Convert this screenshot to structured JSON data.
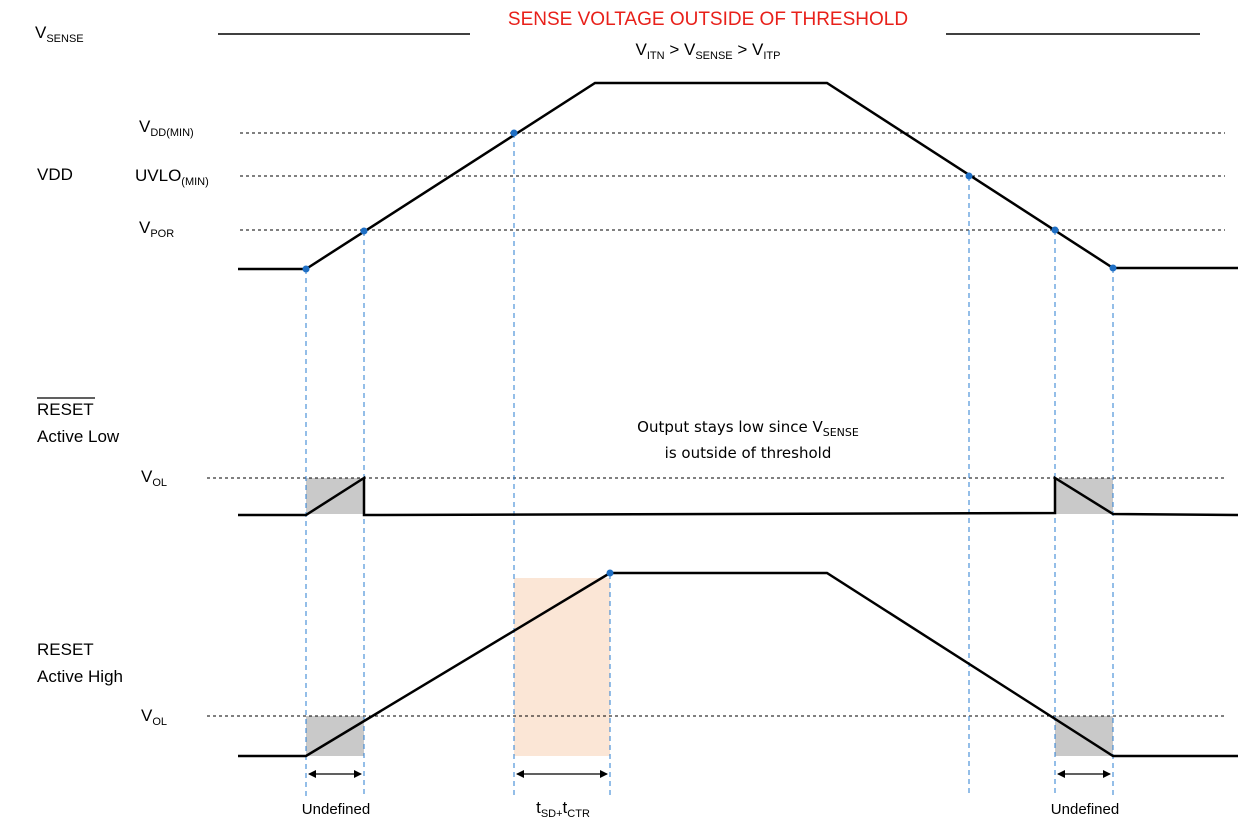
{
  "signals": {
    "vsense": {
      "main": "V",
      "sub": "SENSE"
    },
    "vdd": "VDD",
    "reset_n_line1": "RESET",
    "reset_n_line2": "Active Low",
    "reset_line1": "RESET",
    "reset_line2": "Active High"
  },
  "banner": {
    "title": "SENSE VOLTAGE OUTSIDE OF THRESHOLD",
    "cond_v1": "V",
    "cond_s1": "ITN",
    "cond_gt1": " > ",
    "cond_v2": "V",
    "cond_s2": "SENSE",
    "cond_gt2": " > ",
    "cond_v3": "V",
    "cond_s3": "ITP"
  },
  "levels": {
    "vddmin": {
      "main": "V",
      "sub": "DD(MIN)"
    },
    "uvlo": {
      "main": "UVLO",
      "sub": "(MIN)"
    },
    "vpor": {
      "main": "V",
      "sub": "POR"
    },
    "vol1": {
      "main": "V",
      "sub": "OL"
    },
    "vol2": {
      "main": "V",
      "sub": "OL"
    }
  },
  "annotations": {
    "output_note_line1_a": "Output stays low since V",
    "output_note_line1_sub": "SENSE",
    "output_note_line2": "is outside of threshold",
    "undefined_left": "Undefined",
    "undefined_right": "Undefined",
    "timing_t1": "t",
    "timing_s1": "SD+",
    "timing_t2": "t",
    "timing_s2": "CTR"
  },
  "colors": {
    "waveform": "#000000",
    "guide": "#2a7dd1",
    "marker": "#1f6fc4",
    "undefined_region": "#c9c9c9",
    "delay_region": "#fbe6d6",
    "banner_text": "#e8201a"
  }
}
